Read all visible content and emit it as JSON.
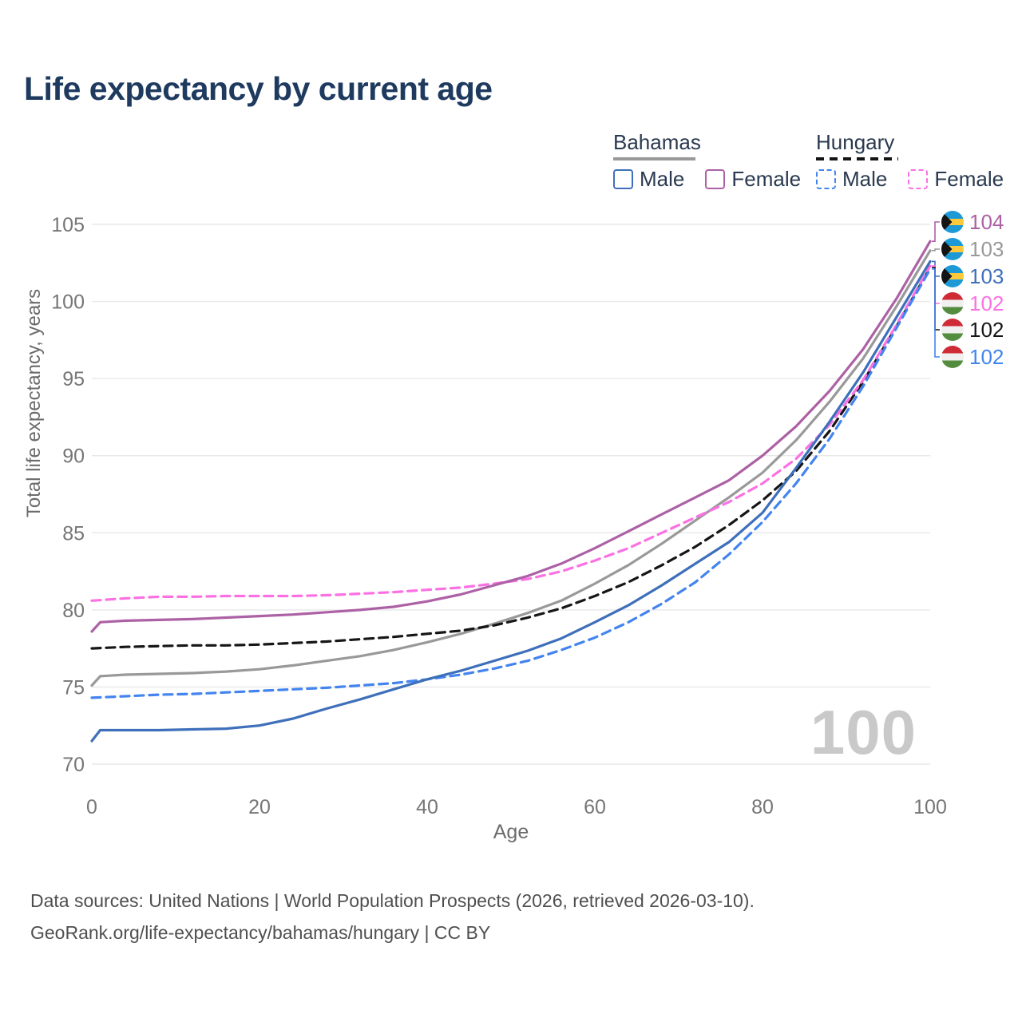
{
  "title": "Life expectancy by current age",
  "watermark_age": "100",
  "footer": {
    "line1": "Data sources: United Nations | World Population Prospects (2026, retrieved 2026-03-10).",
    "line2": "GeoRank.org/life-expectancy/bahamas/hungary | CC BY"
  },
  "legend": {
    "groups": [
      {
        "name": "Bahamas",
        "underline": {
          "style": "solid",
          "color": "#999999"
        },
        "items": [
          {
            "label": "Male",
            "color": "#3e6fba",
            "dashed": false
          },
          {
            "label": "Female",
            "color": "#ad61a5",
            "dashed": false
          }
        ]
      },
      {
        "name": "Hungary",
        "underline": {
          "style": "dashed",
          "color": "#141414"
        },
        "items": [
          {
            "label": "Male",
            "color": "#4384ef",
            "dashed": true
          },
          {
            "label": "Female",
            "color": "#fb71e3",
            "dashed": true
          }
        ]
      }
    ]
  },
  "chart_data": {
    "type": "line",
    "title": "Life expectancy by current age",
    "xlabel": "Age",
    "ylabel": "Total life expectancy, years",
    "xlim": [
      0,
      100
    ],
    "ylim": [
      70,
      105
    ],
    "x_ticks": [
      0,
      20,
      40,
      60,
      80,
      100
    ],
    "y_ticks": [
      70,
      75,
      80,
      85,
      90,
      95,
      100,
      105
    ],
    "grid": "horizontal",
    "legend_position": "top-right",
    "colors": {
      "gridline": "#e8e8e8",
      "tick_label": "#767676",
      "axis_title": "#6b6b6b",
      "title_text": "#1e3a5f",
      "watermark": "#c9c9c9"
    },
    "flag_colors": {
      "bahamas": {
        "aquamarine": "#1d9ad6",
        "gold": "#ffc93c",
        "black": "#141414"
      },
      "hungary": {
        "red": "#ce2b37",
        "white": "#f0f0f0",
        "green": "#548c3f"
      }
    },
    "series": [
      {
        "id": "bahamas-both",
        "name": "Bahamas — Both sexes",
        "country": "Bahamas",
        "sex": "both",
        "color": "#999999",
        "dashed": false,
        "flag": "bahamas",
        "end_label": "103",
        "points": [
          [
            0,
            75.1
          ],
          [
            1,
            75.7
          ],
          [
            4,
            75.8
          ],
          [
            8,
            75.85
          ],
          [
            12,
            75.9
          ],
          [
            16,
            76.0
          ],
          [
            20,
            76.15
          ],
          [
            24,
            76.4
          ],
          [
            28,
            76.7
          ],
          [
            32,
            77.0
          ],
          [
            36,
            77.4
          ],
          [
            40,
            77.9
          ],
          [
            44,
            78.45
          ],
          [
            48,
            79.1
          ],
          [
            52,
            79.8
          ],
          [
            56,
            80.6
          ],
          [
            60,
            81.7
          ],
          [
            64,
            82.9
          ],
          [
            68,
            84.3
          ],
          [
            72,
            85.8
          ],
          [
            76,
            87.3
          ],
          [
            80,
            88.9
          ],
          [
            84,
            91.0
          ],
          [
            88,
            93.5
          ],
          [
            92,
            96.3
          ],
          [
            96,
            99.7
          ],
          [
            100,
            103.3
          ]
        ]
      },
      {
        "id": "hungary-both",
        "name": "Hungary — Both sexes",
        "country": "Hungary",
        "sex": "both",
        "color": "#161616",
        "dashed": true,
        "flag": "hungary",
        "end_label": "102",
        "points": [
          [
            0,
            77.5
          ],
          [
            4,
            77.6
          ],
          [
            8,
            77.65
          ],
          [
            12,
            77.7
          ],
          [
            16,
            77.7
          ],
          [
            20,
            77.75
          ],
          [
            24,
            77.85
          ],
          [
            28,
            77.95
          ],
          [
            32,
            78.1
          ],
          [
            36,
            78.25
          ],
          [
            40,
            78.45
          ],
          [
            44,
            78.65
          ],
          [
            48,
            79.0
          ],
          [
            52,
            79.5
          ],
          [
            56,
            80.1
          ],
          [
            60,
            80.9
          ],
          [
            64,
            81.8
          ],
          [
            68,
            82.9
          ],
          [
            72,
            84.1
          ],
          [
            76,
            85.5
          ],
          [
            80,
            87.1
          ],
          [
            84,
            89.0
          ],
          [
            88,
            91.6
          ],
          [
            92,
            94.8
          ],
          [
            96,
            98.4
          ],
          [
            100,
            102.2
          ]
        ]
      },
      {
        "id": "hungary-female",
        "name": "Hungary — Female",
        "country": "Hungary",
        "sex": "female",
        "color": "#fb71e3",
        "dashed": true,
        "flag": "hungary",
        "end_label": "102",
        "points": [
          [
            0,
            80.6
          ],
          [
            4,
            80.75
          ],
          [
            8,
            80.85
          ],
          [
            12,
            80.85
          ],
          [
            16,
            80.9
          ],
          [
            20,
            80.9
          ],
          [
            24,
            80.9
          ],
          [
            28,
            80.95
          ],
          [
            32,
            81.05
          ],
          [
            36,
            81.15
          ],
          [
            40,
            81.3
          ],
          [
            44,
            81.45
          ],
          [
            48,
            81.7
          ],
          [
            52,
            82.0
          ],
          [
            56,
            82.5
          ],
          [
            60,
            83.2
          ],
          [
            64,
            84.0
          ],
          [
            68,
            85.0
          ],
          [
            72,
            86.0
          ],
          [
            76,
            87.0
          ],
          [
            80,
            88.2
          ],
          [
            84,
            89.8
          ],
          [
            88,
            92.0
          ],
          [
            92,
            94.9
          ],
          [
            96,
            98.5
          ],
          [
            100,
            102.3
          ]
        ]
      },
      {
        "id": "hungary-male",
        "name": "Hungary — Male",
        "country": "Hungary",
        "sex": "male",
        "color": "#4384ef",
        "dashed": true,
        "flag": "hungary",
        "end_label": "102",
        "points": [
          [
            0,
            74.3
          ],
          [
            4,
            74.4
          ],
          [
            8,
            74.5
          ],
          [
            12,
            74.55
          ],
          [
            16,
            74.65
          ],
          [
            20,
            74.75
          ],
          [
            24,
            74.85
          ],
          [
            28,
            74.95
          ],
          [
            32,
            75.1
          ],
          [
            36,
            75.25
          ],
          [
            40,
            75.5
          ],
          [
            44,
            75.8
          ],
          [
            48,
            76.2
          ],
          [
            52,
            76.7
          ],
          [
            56,
            77.4
          ],
          [
            60,
            78.2
          ],
          [
            64,
            79.2
          ],
          [
            68,
            80.4
          ],
          [
            72,
            81.8
          ],
          [
            76,
            83.6
          ],
          [
            80,
            85.7
          ],
          [
            84,
            88.2
          ],
          [
            88,
            91.1
          ],
          [
            92,
            94.5
          ],
          [
            96,
            98.3
          ],
          [
            100,
            102.1
          ]
        ]
      },
      {
        "id": "bahamas-female",
        "name": "Bahamas — Female",
        "country": "Bahamas",
        "sex": "female",
        "color": "#ad61a5",
        "dashed": false,
        "flag": "bahamas",
        "end_label": "104",
        "points": [
          [
            0,
            78.6
          ],
          [
            1,
            79.2
          ],
          [
            4,
            79.3
          ],
          [
            8,
            79.35
          ],
          [
            12,
            79.4
          ],
          [
            16,
            79.5
          ],
          [
            20,
            79.6
          ],
          [
            24,
            79.7
          ],
          [
            28,
            79.85
          ],
          [
            32,
            80.0
          ],
          [
            36,
            80.2
          ],
          [
            40,
            80.55
          ],
          [
            44,
            81.0
          ],
          [
            48,
            81.6
          ],
          [
            52,
            82.2
          ],
          [
            56,
            83.0
          ],
          [
            60,
            84.0
          ],
          [
            64,
            85.1
          ],
          [
            68,
            86.2
          ],
          [
            72,
            87.3
          ],
          [
            76,
            88.4
          ],
          [
            80,
            90.0
          ],
          [
            84,
            91.9
          ],
          [
            88,
            94.2
          ],
          [
            92,
            96.9
          ],
          [
            96,
            100.2
          ],
          [
            100,
            103.9
          ]
        ]
      },
      {
        "id": "bahamas-male",
        "name": "Bahamas — Male",
        "country": "Bahamas",
        "sex": "male",
        "color": "#3e6fba",
        "dashed": false,
        "flag": "bahamas",
        "end_label": "103",
        "points": [
          [
            0,
            71.5
          ],
          [
            1,
            72.2
          ],
          [
            4,
            72.2
          ],
          [
            8,
            72.2
          ],
          [
            12,
            72.25
          ],
          [
            16,
            72.3
          ],
          [
            20,
            72.5
          ],
          [
            24,
            72.95
          ],
          [
            28,
            73.6
          ],
          [
            32,
            74.2
          ],
          [
            36,
            74.85
          ],
          [
            40,
            75.5
          ],
          [
            44,
            76.05
          ],
          [
            48,
            76.7
          ],
          [
            52,
            77.35
          ],
          [
            56,
            78.15
          ],
          [
            60,
            79.2
          ],
          [
            64,
            80.3
          ],
          [
            68,
            81.6
          ],
          [
            72,
            83.0
          ],
          [
            76,
            84.4
          ],
          [
            80,
            86.3
          ],
          [
            84,
            89.2
          ],
          [
            88,
            92.2
          ],
          [
            92,
            95.4
          ],
          [
            96,
            99.0
          ],
          [
            100,
            102.6
          ]
        ]
      }
    ],
    "end_label_rows_y": [
      278,
      312,
      346,
      380,
      413,
      447
    ]
  }
}
